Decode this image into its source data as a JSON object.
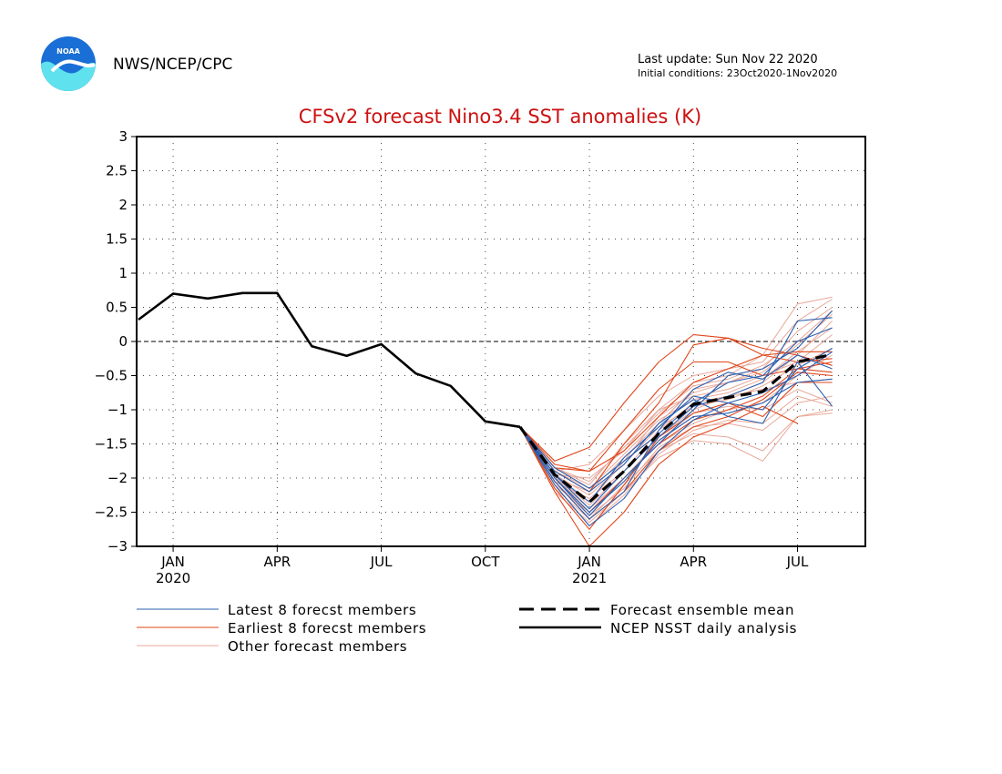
{
  "header": {
    "org": "NWS/NCEP/CPC",
    "logo_text": "NOAA",
    "last_update": "Last update: Sun Nov 22 2020",
    "initial_conditions": "Initial conditions: 23Oct2020-1Nov2020"
  },
  "chart_data": {
    "type": "line",
    "title": "CFSv2 forecast Nino3.4 SST anomalies (K)",
    "xlabel": "",
    "ylabel": "",
    "ylim": [
      -3,
      3
    ],
    "yticks": [
      "3",
      "2.5",
      "2",
      "1.5",
      "1",
      "0.5",
      "0",
      "−0.5",
      "−1",
      "−1.5",
      "−2",
      "−2.5",
      "−3"
    ],
    "ytick_values": [
      3,
      2.5,
      2,
      1.5,
      1,
      0.5,
      0,
      -0.5,
      -1,
      -1.5,
      -2,
      -2.5,
      -3
    ],
    "x_months": [
      "Dec 2019",
      "Jan 2020",
      "Feb 2020",
      "Mar 2020",
      "Apr 2020",
      "May 2020",
      "Jun 2020",
      "Jul 2020",
      "Aug 2020",
      "Sep 2020",
      "Oct 2020",
      "Nov 2020",
      "Dec 2020",
      "Jan 2021",
      "Feb 2021",
      "Mar 2021",
      "Apr 2021",
      "May 2021",
      "Jun 2021",
      "Jul 2021",
      "Aug 2021"
    ],
    "xticks": [
      {
        "label": "JAN",
        "sub": "2020",
        "month": "Jan 2020"
      },
      {
        "label": "APR",
        "sub": "",
        "month": "Apr 2020"
      },
      {
        "label": "JUL",
        "sub": "",
        "month": "Jul 2020"
      },
      {
        "label": "OCT",
        "sub": "",
        "month": "Oct 2020"
      },
      {
        "label": "JAN",
        "sub": "2021",
        "month": "Jan 2021"
      },
      {
        "label": "APR",
        "sub": "",
        "month": "Apr 2021"
      },
      {
        "label": "JUL",
        "sub": "",
        "month": "Jul 2021"
      }
    ],
    "grid": true,
    "zero_line": true,
    "legend": [
      {
        "key": "latest",
        "label": "Latest 8 forecst members",
        "color": "#2a5fb0",
        "style": "thin"
      },
      {
        "key": "earliest",
        "label": "Earliest 8 forecst members",
        "color": "#e0461a",
        "style": "thin"
      },
      {
        "key": "other",
        "label": "Other forecast members",
        "color": "#e8a89a",
        "style": "thin"
      },
      {
        "key": "mean",
        "label": "Forecast ensemble mean",
        "color": "#000000",
        "style": "dashed"
      },
      {
        "key": "obs",
        "label": "NCEP NSST daily analysis",
        "color": "#000000",
        "style": "solid"
      }
    ],
    "legend_position": "bottom",
    "forecast_start_month": "Nov 2020",
    "forecast_months": [
      "Nov 2020",
      "Dec 2020",
      "Jan 2021",
      "Feb 2021",
      "Mar 2021",
      "Apr 2021",
      "May 2021",
      "Jun 2021",
      "Jul 2021",
      "Aug 2021"
    ],
    "series": [
      {
        "name": "NCEP NSST daily analysis",
        "key": "obs",
        "months": [
          "Dec 2019",
          "Jan 2020",
          "Feb 2020",
          "Mar 2020",
          "Apr 2020",
          "May 2020",
          "Jun 2020",
          "Jul 2020",
          "Aug 2020",
          "Sep 2020",
          "Oct 2020",
          "Nov 2020"
        ],
        "values": [
          0.32,
          0.7,
          0.63,
          0.71,
          0.71,
          -0.07,
          -0.21,
          -0.04,
          -0.47,
          -0.65,
          -1.17,
          -1.25
        ]
      },
      {
        "name": "Forecast ensemble mean",
        "key": "mean",
        "values": [
          -1.25,
          -1.95,
          -2.35,
          -1.9,
          -1.35,
          -0.92,
          -0.82,
          -0.73,
          -0.3,
          -0.19
        ]
      },
      {
        "name": "Latest 8 forecst members",
        "key": "latest",
        "members": [
          [
            -1.25,
            -1.95,
            -2.45,
            -1.9,
            -1.4,
            -0.95,
            -0.8,
            -0.6,
            0.3,
            0.35
          ],
          [
            -1.25,
            -2.0,
            -2.55,
            -2.0,
            -1.5,
            -1.0,
            -0.5,
            -0.4,
            -0.1,
            0.45
          ],
          [
            -1.25,
            -2.05,
            -2.6,
            -2.2,
            -1.3,
            -0.7,
            -0.45,
            -0.55,
            -0.2,
            -0.4
          ],
          [
            -1.25,
            -1.9,
            -2.2,
            -1.8,
            -1.2,
            -0.85,
            -1.1,
            -1.2,
            -0.3,
            -0.95
          ],
          [
            -1.25,
            -2.1,
            -2.7,
            -2.3,
            -1.6,
            -1.15,
            -0.9,
            -0.75,
            -0.5,
            -0.15
          ],
          [
            -1.25,
            -1.95,
            -2.35,
            -1.7,
            -1.25,
            -0.8,
            -0.9,
            -1.0,
            -0.4,
            -0.1
          ],
          [
            -1.25,
            -2.0,
            -2.5,
            -2.05,
            -1.45,
            -1.1,
            -1.05,
            -0.9,
            -0.6,
            -0.55
          ],
          [
            -1.25,
            -1.85,
            -2.15,
            -1.75,
            -1.35,
            -0.9,
            -0.6,
            -0.5,
            0.0,
            0.2
          ]
        ]
      },
      {
        "name": "Earliest 8 forecst members",
        "key": "earliest",
        "members": [
          [
            -1.25,
            -1.75,
            -1.55,
            -0.9,
            -0.3,
            0.1,
            0.05,
            -0.2,
            -0.3,
            -0.25
          ],
          [
            -1.25,
            -1.8,
            -1.9,
            -1.6,
            -1.1,
            -0.6,
            -0.4,
            -0.2,
            -0.15,
            -0.15
          ],
          [
            -1.25,
            -2.15,
            -2.75,
            -2.1,
            -1.4,
            -1.05,
            -0.9,
            -1.1,
            -0.6,
            -0.6
          ],
          [
            -1.25,
            -2.2,
            -3.0,
            -2.5,
            -1.8,
            -1.4,
            -1.2,
            -0.95,
            -1.2,
            null
          ],
          [
            -1.25,
            -2.0,
            -2.5,
            -2.0,
            -1.5,
            -1.15,
            -1.0,
            -0.8,
            -0.4,
            -0.45
          ],
          [
            -1.25,
            -1.85,
            -1.9,
            -1.3,
            -0.7,
            -0.3,
            -0.3,
            -0.5,
            -0.4,
            -0.3
          ],
          [
            -1.25,
            -2.05,
            -2.6,
            -2.2,
            -1.6,
            -1.25,
            -1.1,
            -0.85,
            -0.45,
            -0.5
          ],
          [
            -1.25,
            -1.9,
            -2.2,
            -1.5,
            -0.9,
            -0.05,
            0.05,
            -0.1,
            -0.2,
            -0.35
          ]
        ]
      },
      {
        "name": "Other forecast members",
        "key": "other",
        "members": [
          [
            -1.25,
            -1.9,
            -1.8,
            -1.3,
            -0.8,
            -0.5,
            -0.4,
            -0.3,
            0.3,
            0.62
          ],
          [
            -1.25,
            -1.95,
            -2.0,
            -1.6,
            -1.0,
            -0.6,
            -0.5,
            -0.2,
            0.55,
            0.65
          ],
          [
            -1.25,
            -2.0,
            -2.2,
            -1.7,
            -1.2,
            -0.7,
            -0.6,
            -0.4,
            0.15,
            0.5
          ],
          [
            -1.25,
            -2.05,
            -2.3,
            -1.9,
            -1.4,
            -1.0,
            -0.8,
            -0.6,
            -0.2,
            0.3
          ],
          [
            -1.25,
            -2.1,
            -2.5,
            -2.0,
            -1.5,
            -1.2,
            -1.0,
            -0.9,
            -0.5,
            -0.2
          ],
          [
            -1.25,
            -2.15,
            -2.6,
            -2.1,
            -1.6,
            -1.35,
            -1.4,
            -1.6,
            -1.1,
            -1.05
          ],
          [
            -1.25,
            -2.2,
            -2.65,
            -2.2,
            -1.7,
            -1.45,
            -1.5,
            -1.75,
            -1.1,
            -1.0
          ],
          [
            -1.25,
            -1.85,
            -2.1,
            -1.5,
            -1.0,
            -0.8,
            -0.7,
            -0.5,
            -0.3,
            0.1
          ],
          [
            -1.25,
            -1.95,
            -2.4,
            -1.9,
            -1.3,
            -0.9,
            -0.8,
            -0.7,
            -0.6,
            -0.55
          ],
          [
            -1.25,
            -2.0,
            -2.35,
            -1.75,
            -1.1,
            -0.75,
            -0.6,
            -0.45,
            -0.05,
            0.4
          ],
          [
            -1.25,
            -2.05,
            -2.55,
            -2.15,
            -1.55,
            -1.25,
            -1.2,
            -1.3,
            -0.9,
            -0.8
          ],
          [
            -1.25,
            -1.9,
            -2.15,
            -1.65,
            -1.15,
            -0.85,
            -0.75,
            -0.55,
            -0.15,
            0.2
          ],
          [
            -1.25,
            -2.0,
            -2.45,
            -2.0,
            -1.45,
            -1.05,
            -0.95,
            -1.0,
            -0.7,
            -0.9
          ],
          [
            -1.25,
            -1.95,
            -2.25,
            -1.8,
            -1.25,
            -0.95,
            -0.85,
            -0.65,
            -0.35,
            -0.1
          ],
          [
            -1.25,
            -2.1,
            -2.7,
            -2.25,
            -1.65,
            -1.3,
            -1.15,
            -1.2,
            -0.8,
            -0.95
          ],
          [
            -1.25,
            -1.85,
            -2.05,
            -1.55,
            -1.05,
            -0.65,
            -0.55,
            -0.35,
            0.0,
            0.45
          ]
        ]
      }
    ]
  }
}
